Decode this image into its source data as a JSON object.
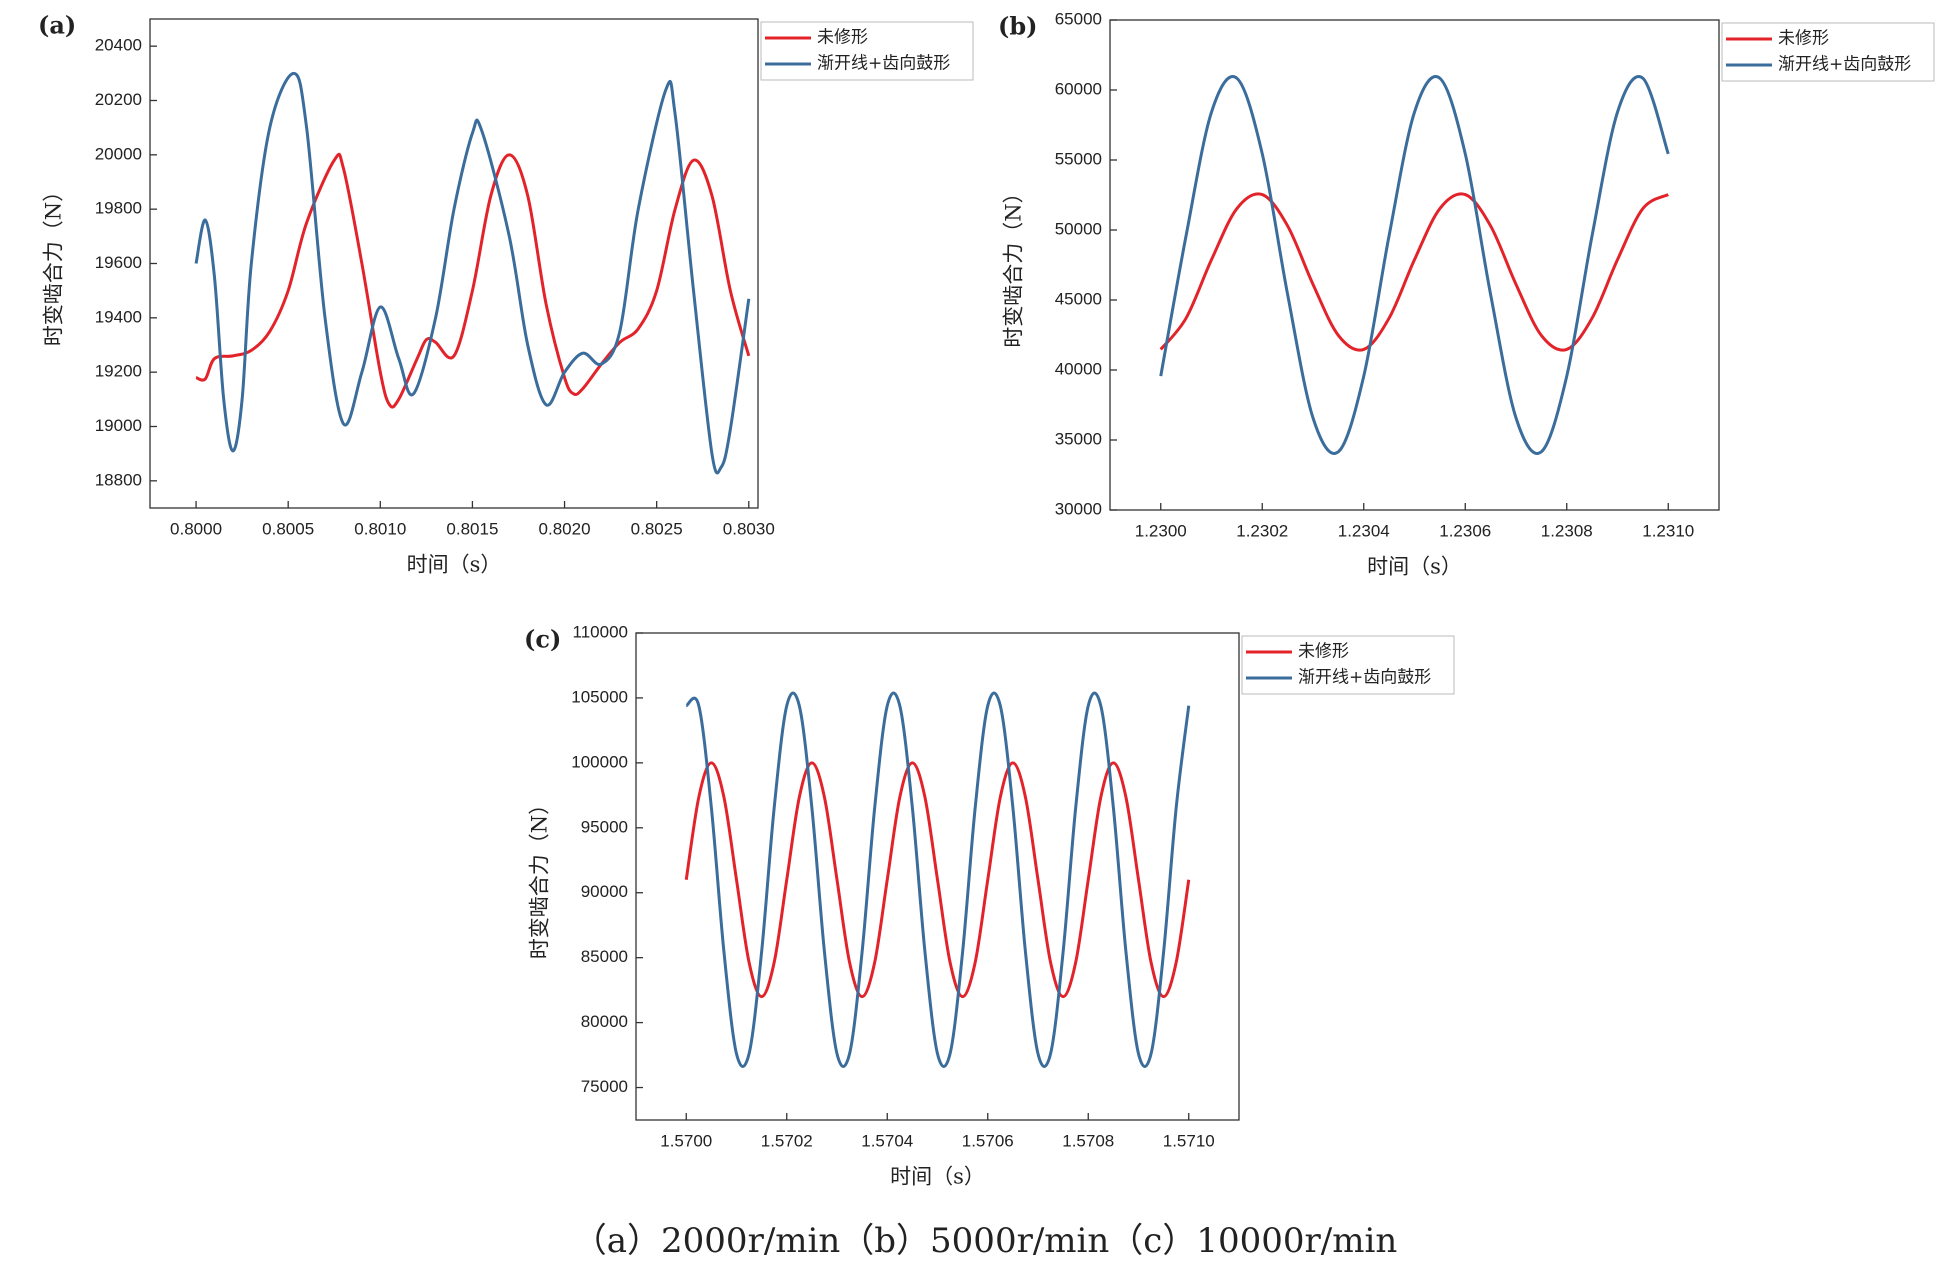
{
  "chart_data": [
    {
      "type": "line",
      "panel_label": "(a)",
      "xlabel": "时间（s）",
      "ylabel": "时变啮合力（N）",
      "xlim": [
        0.79975,
        0.80305
      ],
      "ylim": [
        18700,
        20500
      ],
      "xticks": [
        {
          "value": 0.8,
          "label": "0.8000"
        },
        {
          "value": 0.8005,
          "label": "0.8005"
        },
        {
          "value": 0.801,
          "label": "0.8010"
        },
        {
          "value": 0.8015,
          "label": "0.8015"
        },
        {
          "value": 0.802,
          "label": "0.8020"
        },
        {
          "value": 0.8025,
          "label": "0.8025"
        },
        {
          "value": 0.803,
          "label": "0.8030"
        }
      ],
      "yticks": [
        18800,
        19000,
        19200,
        19400,
        19600,
        19800,
        20000,
        20200,
        20400
      ],
      "legend": "outside upper right",
      "series": [
        {
          "name": "未修形",
          "color": "#e3232a",
          "x": [
            0.8,
            0.80005,
            0.8001,
            0.8002,
            0.8003,
            0.8004,
            0.8005,
            0.8006,
            0.80075,
            0.8008,
            0.8009,
            0.801,
            0.80105,
            0.8011,
            0.8012,
            0.80125,
            0.8013,
            0.8014,
            0.8015,
            0.8016,
            0.8017,
            0.8018,
            0.8019,
            0.802,
            0.80205,
            0.8021,
            0.8022,
            0.8023,
            0.8024,
            0.8025,
            0.8026,
            0.8027,
            0.8028,
            0.8029,
            0.803
          ],
          "values": [
            19180,
            19175,
            19250,
            19260,
            19280,
            19350,
            19500,
            19750,
            19980,
            19950,
            19600,
            19200,
            19080,
            19100,
            19250,
            19320,
            19310,
            19260,
            19500,
            19850,
            20000,
            19850,
            19450,
            19180,
            19120,
            19140,
            19230,
            19310,
            19360,
            19500,
            19800,
            19980,
            19850,
            19500,
            19260
          ]
        },
        {
          "name": "渐开线+齿向鼓形",
          "color": "#3b6d9c",
          "x": [
            0.8,
            0.80005,
            0.8001,
            0.80015,
            0.8002,
            0.80025,
            0.8003,
            0.8004,
            0.80053,
            0.8006,
            0.8007,
            0.8008,
            0.8009,
            0.801,
            0.8011,
            0.80118,
            0.8013,
            0.8014,
            0.8015,
            0.80155,
            0.8017,
            0.8018,
            0.8019,
            0.802,
            0.8021,
            0.8022,
            0.8023,
            0.8024,
            0.80255,
            0.8026,
            0.8027,
            0.8028,
            0.80285,
            0.8029,
            0.803
          ],
          "values": [
            19600,
            19760,
            19550,
            19100,
            18910,
            19100,
            19600,
            20100,
            20300,
            20100,
            19400,
            19010,
            19200,
            19440,
            19250,
            19120,
            19400,
            19800,
            20080,
            20090,
            19700,
            19300,
            19080,
            19200,
            19270,
            19230,
            19350,
            19800,
            20240,
            20150,
            19500,
            18900,
            18850,
            18990,
            19470
          ]
        }
      ]
    },
    {
      "type": "line",
      "panel_label": "(b)",
      "xlabel": "时间（s）",
      "ylabel": "时变啮合力（N）",
      "xlim": [
        1.2299,
        1.2311
      ],
      "ylim": [
        30000,
        65000
      ],
      "xticks": [
        {
          "value": 1.23,
          "label": "1.2300"
        },
        {
          "value": 1.2302,
          "label": "1.2302"
        },
        {
          "value": 1.2304,
          "label": "1.2304"
        },
        {
          "value": 1.2306,
          "label": "1.2306"
        },
        {
          "value": 1.2308,
          "label": "1.2308"
        },
        {
          "value": 1.231,
          "label": "1.2310"
        }
      ],
      "yticks": [
        30000,
        35000,
        40000,
        45000,
        50000,
        55000,
        60000,
        65000
      ],
      "legend": "outside upper right",
      "x": [
        1.23,
        1.23005,
        1.2301,
        1.23015,
        1.2302,
        1.23025,
        1.2303,
        1.23035,
        1.2304,
        1.23045,
        1.2305,
        1.23055,
        1.2306,
        1.23065,
        1.2307,
        1.23075,
        1.2308,
        1.23085,
        1.2309,
        1.23095,
        1.231
      ],
      "series": [
        {
          "name": "未修形",
          "color": "#e3232a",
          "values": [
            41470,
            43710,
            47880,
            51530,
            52530,
            50290,
            46120,
            42470,
            41470,
            43710,
            47880,
            51530,
            52530,
            50290,
            46120,
            42470,
            41470,
            43710,
            47880,
            51530,
            52530
          ]
        },
        {
          "name": "渐开线+齿向鼓形",
          "color": "#3b6d9c",
          "values": [
            39560,
            49610,
            58420,
            60840,
            55440,
            45390,
            36580,
            34160,
            39560,
            49610,
            58420,
            60840,
            55440,
            45390,
            36580,
            34160,
            39560,
            49610,
            58420,
            60840,
            55440
          ]
        }
      ]
    },
    {
      "type": "line",
      "panel_label": "(c)",
      "xlabel": "时间（s）",
      "ylabel": "时变啮合力（N）",
      "xlim": [
        1.5699,
        1.5711
      ],
      "ylim": [
        72500,
        110000
      ],
      "xticks": [
        {
          "value": 1.57,
          "label": "1.5700"
        },
        {
          "value": 1.5702,
          "label": "1.5702"
        },
        {
          "value": 1.5704,
          "label": "1.5704"
        },
        {
          "value": 1.5706,
          "label": "1.5706"
        },
        {
          "value": 1.5708,
          "label": "1.5708"
        },
        {
          "value": 1.571,
          "label": "1.5710"
        }
      ],
      "yticks": [
        75000,
        80000,
        85000,
        90000,
        95000,
        100000,
        105000,
        110000
      ],
      "legend": "outside upper right",
      "x": [
        1.57,
        1.570025,
        1.57005,
        1.570075,
        1.5701,
        1.570125,
        1.57015,
        1.570175,
        1.5702,
        1.570225,
        1.57025,
        1.570275,
        1.5703,
        1.570325,
        1.57035,
        1.570375,
        1.5704,
        1.570425,
        1.57045,
        1.570475,
        1.5705,
        1.570525,
        1.57055,
        1.570575,
        1.5706,
        1.570625,
        1.57065,
        1.570675,
        1.5707,
        1.570725,
        1.57075,
        1.570775,
        1.5708,
        1.570825,
        1.57085,
        1.570875,
        1.5709,
        1.570925,
        1.57095,
        1.570975,
        1.571
      ],
      "series": [
        {
          "name": "未修形",
          "color": "#e3232a",
          "values": [
            91000,
            97360,
            100000,
            97360,
            91000,
            84640,
            82000,
            84640,
            91000,
            97360,
            100000,
            97360,
            91000,
            84640,
            82000,
            84640,
            91000,
            97360,
            100000,
            97360,
            91000,
            84640,
            82000,
            84640,
            91000,
            97360,
            100000,
            97360,
            91000,
            84640,
            82000,
            84640,
            91000,
            97360,
            100000,
            97360,
            91000,
            84640,
            82000,
            84640,
            91000
          ]
        },
        {
          "name": "渐开线+齿向鼓形",
          "color": "#3b6d9c",
          "values": [
            104400,
            104400,
            96550,
            85450,
            77600,
            77600,
            85450,
            96550,
            104400,
            104400,
            96550,
            85450,
            77600,
            77600,
            85450,
            96550,
            104400,
            104400,
            96550,
            85450,
            77600,
            77600,
            85450,
            96550,
            104400,
            104400,
            96550,
            85450,
            77600,
            77600,
            85450,
            96550,
            104400,
            104400,
            96550,
            85450,
            77600,
            77600,
            85450,
            96550,
            104400
          ]
        }
      ]
    }
  ],
  "caption": "（a）2000r/min（b）5000r/min（c）10000r/min"
}
